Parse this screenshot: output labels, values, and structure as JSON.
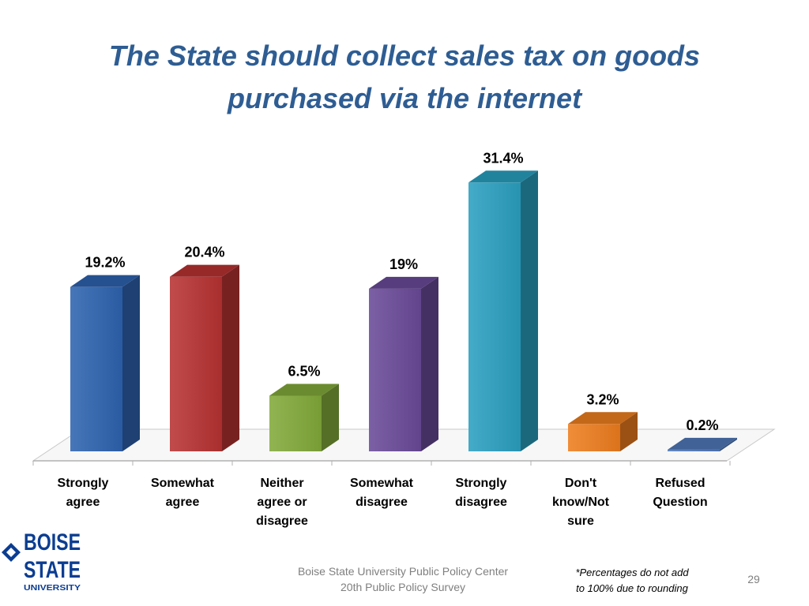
{
  "slide": {
    "title_line1": "The State should collect sales tax on goods",
    "title_line2": "purchased via the internet",
    "footer_line1": "Boise State University  Public Policy Center",
    "footer_line2": "20th Public Policy Survey",
    "note_line1": "*Percentages do not add",
    "note_line2": "to 100% due to rounding",
    "page_number": "29",
    "logo": {
      "line1": "BOISE",
      "line2": "STATE",
      "line3": "UNIVERSITY",
      "color": "#0b3d91",
      "icon": "diamond-icon"
    }
  },
  "chart_data": {
    "type": "bar",
    "categories": [
      [
        "Strongly",
        "agree"
      ],
      [
        "Somewhat",
        "agree"
      ],
      [
        "Neither",
        "agree or",
        "disagree"
      ],
      [
        "Somewhat",
        "disagree"
      ],
      [
        "Strongly",
        "disagree"
      ],
      [
        "Don't",
        "know/Not",
        "sure"
      ],
      [
        "Refused",
        "Question"
      ]
    ],
    "values": [
      19.2,
      20.4,
      6.5,
      19,
      31.4,
      3.2,
      0.2
    ],
    "data_labels": [
      "19.2%",
      "20.4%",
      "6.5%",
      "19%",
      "31.4%",
      "3.2%",
      "0.2%"
    ],
    "colors": [
      "#2e63b0",
      "#b83232",
      "#82aa3a",
      "#6a4a99",
      "#2aa0c0",
      "#ee7d1e",
      "#4f78b8"
    ],
    "ylim": [
      0,
      35
    ],
    "grid": false,
    "legend": "none",
    "style": "3d-column"
  }
}
